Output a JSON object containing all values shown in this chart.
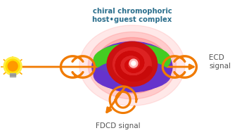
{
  "bg_color": "#ffffff",
  "title_text": "chiral chromophoric\nhost•guest complex",
  "title_fontsize": 7.2,
  "title_color": "#2a6e8c",
  "ecd_label": "ECD\nsignal",
  "fdcd_label": "FDCD signal",
  "label_color": "#555555",
  "label_fontsize": 7.5,
  "orange": "#f07a00",
  "torus_color": "#6633cc",
  "torus_top_color": "#44cc22",
  "spiral_bg_color": "#cc1111",
  "glow_color": "#ffaaaa",
  "glow_color2": "#ff7777"
}
